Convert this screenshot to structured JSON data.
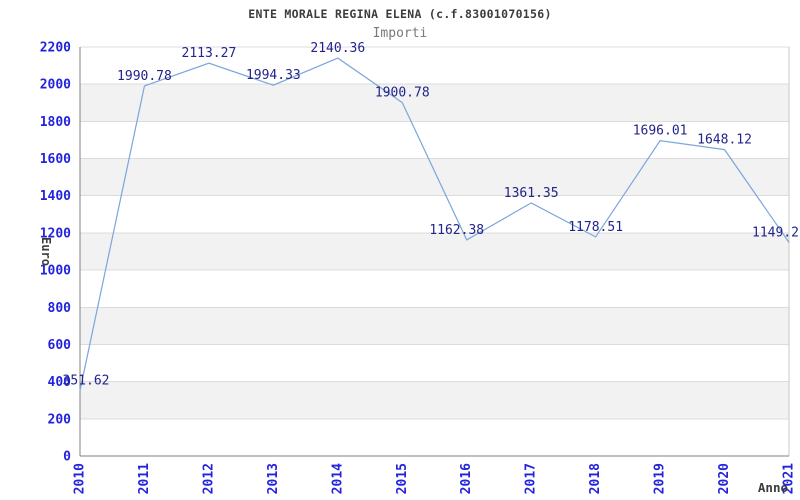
{
  "header": {
    "title": "ENTE MORALE REGINA ELENA (c.f.83001070156)",
    "subtitle": "Importi"
  },
  "chart_data": {
    "type": "line",
    "title": "ENTE MORALE REGINA ELENA (c.f.83001070156)",
    "subtitle": "Importi",
    "xlabel": "Anno",
    "ylabel": "Euro",
    "categories": [
      "2010",
      "2011",
      "2012",
      "2013",
      "2014",
      "2015",
      "2016",
      "2017",
      "2018",
      "2019",
      "2020",
      "2021"
    ],
    "series": [
      {
        "name": "Importi",
        "values": [
          351.62,
          1990.78,
          2113.27,
          1994.33,
          2140.36,
          1900.78,
          1162.38,
          1361.35,
          1178.51,
          1696.01,
          1648.12,
          1149.2
        ]
      }
    ],
    "point_labels": [
      "351.62",
      "1990.78",
      "2113.27",
      "1994.33",
      "2140.36",
      "1900.78",
      "1162.38",
      "1361.35",
      "1178.51",
      "1696.01",
      "1648.12",
      "1149.2"
    ],
    "ylim": [
      0,
      2200
    ],
    "ytick_step": 200,
    "ytick_labels": [
      "0",
      "200",
      "400",
      "600",
      "800",
      "1000",
      "1200",
      "1400",
      "1600",
      "1800",
      "2000",
      "2200"
    ],
    "grid": "horizontal",
    "alternating_bands": true,
    "legend_position": "none",
    "colors": {
      "line": "#7aa6da",
      "point_label": "#23238c",
      "tick_label": "#2323dd",
      "band": "#f2f2f2",
      "grid": "#dcdcdc",
      "axis": "#808080",
      "border": "#c8c8c8",
      "title": "#3c3c3c",
      "subtitle": "#7a7a7a",
      "axis_title": "#3c3c3c"
    }
  }
}
